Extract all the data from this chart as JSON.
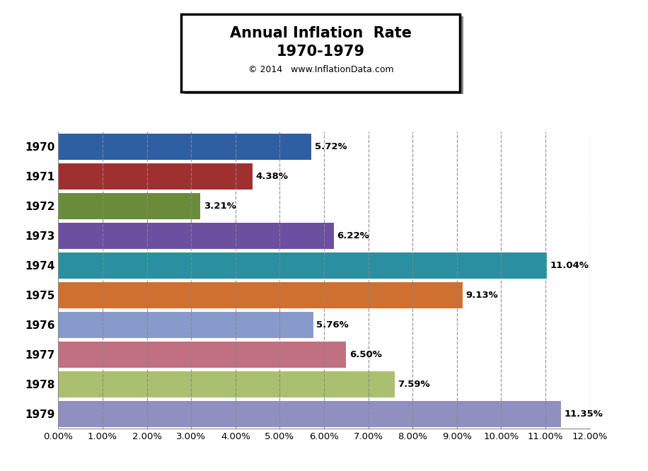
{
  "years": [
    "1970",
    "1971",
    "1972",
    "1973",
    "1974",
    "1975",
    "1976",
    "1977",
    "1978",
    "1979"
  ],
  "values": [
    5.72,
    4.38,
    3.21,
    6.22,
    11.04,
    9.13,
    5.76,
    6.5,
    7.59,
    11.35
  ],
  "colors": [
    "#2E5FA3",
    "#A03030",
    "#6A8C3A",
    "#6B4FA0",
    "#2A8FA0",
    "#D07030",
    "#8899CC",
    "#C07080",
    "#AABF70",
    "#9090C0"
  ],
  "title_line1": "Annual Inflation  Rate",
  "title_line2": "1970-1979",
  "title_line3": "© 2014   www.InflationData.com",
  "xlim": [
    0,
    12
  ],
  "xtick_labels": [
    "0.00%",
    "1.00%",
    "2.00%",
    "3.00%",
    "4.00%",
    "5.00%",
    "6.00%",
    "7.00%",
    "8.00%",
    "9.00%",
    "10.00%",
    "11.00%",
    "12.00%"
  ],
  "xtick_values": [
    0,
    1,
    2,
    3,
    4,
    5,
    6,
    7,
    8,
    9,
    10,
    11,
    12
  ],
  "grid_color": "#888888",
  "background_color": "#FFFFFF",
  "bar_label_fontsize": 9.5,
  "ytick_fontsize": 11,
  "xtick_fontsize": 9.5,
  "title_fontsize1": 15,
  "title_fontsize2": 15,
  "title_fontsize3": 9,
  "bar_height": 0.88
}
